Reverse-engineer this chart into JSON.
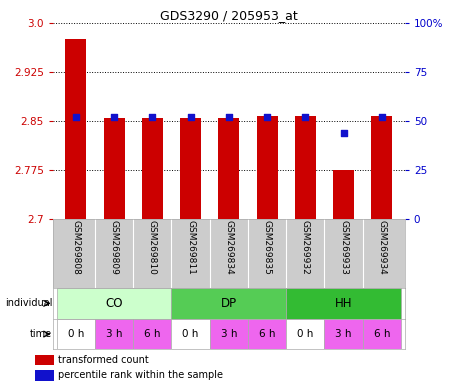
{
  "title": "GDS3290 / 205953_at",
  "samples": [
    "GSM269808",
    "GSM269809",
    "GSM269810",
    "GSM269811",
    "GSM269834",
    "GSM269835",
    "GSM269932",
    "GSM269933",
    "GSM269934"
  ],
  "bar_values": [
    2.975,
    2.855,
    2.855,
    2.855,
    2.855,
    2.857,
    2.857,
    2.775,
    2.857
  ],
  "blue_dot_pct": [
    52,
    52,
    52,
    52,
    52,
    52,
    52,
    44,
    52
  ],
  "ylim_left": [
    2.7,
    3.0
  ],
  "ylim_right": [
    0,
    100
  ],
  "yticks_left": [
    2.7,
    2.775,
    2.85,
    2.925,
    3.0
  ],
  "yticks_right": [
    0,
    25,
    50,
    75,
    100
  ],
  "bar_color": "#cc0000",
  "dot_color": "#1111cc",
  "bar_bottom": 2.7,
  "groups": [
    {
      "label": "CO",
      "start": 0,
      "end": 3,
      "color": "#ccffcc"
    },
    {
      "label": "DP",
      "start": 3,
      "end": 6,
      "color": "#55cc55"
    },
    {
      "label": "HH",
      "start": 6,
      "end": 9,
      "color": "#33bb33"
    }
  ],
  "time_labels": [
    "0 h",
    "3 h",
    "6 h",
    "0 h",
    "3 h",
    "6 h",
    "0 h",
    "3 h",
    "6 h"
  ],
  "time_bg_colors": [
    "#ffffff",
    "#ee66ee",
    "#ee66ee",
    "#ffffff",
    "#ee66ee",
    "#ee66ee",
    "#ffffff",
    "#ee66ee",
    "#ee66ee"
  ],
  "individual_label": "individual",
  "time_label": "time",
  "legend_red": "transformed count",
  "legend_blue": "percentile rank within the sample",
  "background_color": "#ffffff",
  "label_color_left": "#cc0000",
  "label_color_right": "#0000cc",
  "sample_area_color": "#cccccc"
}
